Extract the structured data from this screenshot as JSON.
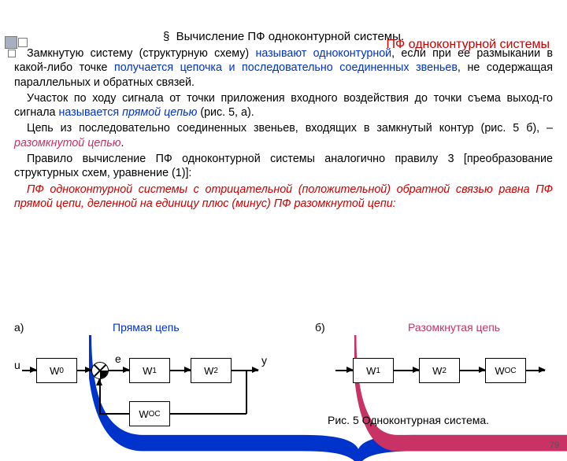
{
  "title": "ПФ одноконтурной системы",
  "subtitle_symbol": "§",
  "subtitle": "Вычисление ПФ одноконтурной системы.",
  "para1_a": "Замкнутую систему (структурную схему) ",
  "para1_b": "называют одноконтурной",
  "para1_c": ", если при ее размыкании в какой-либо точке ",
  "para1_d": "получается цепочка и последовательно соединенных звеньев",
  "para1_e": ", не содержащая параллельных и обратных связей.",
  "para2_a": "Участок по ходу сигнала от точки приложения входного воздействия до точки съема выход-го сигнала ",
  "para2_b": "называется ",
  "para2_c": "прямой цепью",
  "para2_d": " (рис. 5, а).",
  "para3_a": "Цепь из последовательно соединенных звеньев, входящих в замкнутый контур (рис. 5 б), – ",
  "para3_b": "разомкнутой цепью",
  "para3_c": ".",
  "para4": "Правило вычисление ПФ одноконтурной системы аналогично правилу 3 [преобразование структурных схем, уравнение (1)]:",
  "para5": "ПФ одноконтурной системы с отрицательной (положительной) обратной связью равна ПФ прямой цепи, деленной на единицу плюс (минус) ПФ разомкнутой цепи:",
  "label_a": "а)",
  "label_b": "б)",
  "label_direct": "Прямая цепь",
  "label_open": "Разомкнутая цепь",
  "u": "u",
  "e": "e",
  "y": "y",
  "blocks": {
    "w0": "W0",
    "w1": "W1",
    "w2": "W2",
    "woc": "WОС"
  },
  "caption": "Рис. 5  Одноконтурная система.",
  "page": "79",
  "colors": {
    "blue": "#0033cc",
    "red": "#cc0000",
    "pink": "#c83264"
  }
}
